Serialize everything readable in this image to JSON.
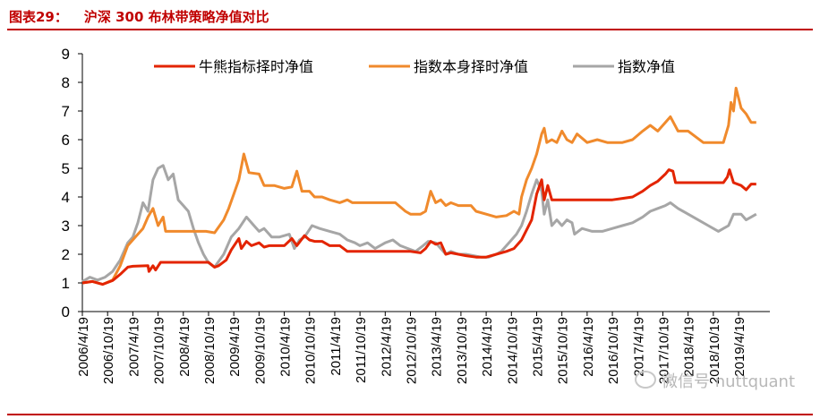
{
  "header": {
    "figure_label": "图表29：",
    "figure_title": "沪深 300 布林带策略净值对比"
  },
  "watermark": {
    "text": "微信号 nuttquant",
    "icon": "wechat-icon"
  },
  "chart_data": {
    "type": "line",
    "title": "沪深 300 布林带策略净值对比",
    "xlabel": "",
    "ylabel": "",
    "ylim": [
      0,
      9
    ],
    "yticks": [
      0,
      1,
      2,
      3,
      4,
      5,
      6,
      7,
      8,
      9
    ],
    "xlim": [
      2006.3,
      2019.92
    ],
    "xtick_positions": [
      2006.3,
      2006.8,
      2007.3,
      2007.8,
      2008.3,
      2008.8,
      2009.3,
      2009.8,
      2010.3,
      2010.8,
      2011.3,
      2011.8,
      2012.3,
      2012.8,
      2013.3,
      2013.8,
      2014.3,
      2014.8,
      2015.3,
      2015.8,
      2016.3,
      2016.8,
      2017.3,
      2017.8,
      2018.3,
      2018.8,
      2019.3
    ],
    "xtick_labels": [
      "2006/4/19",
      "2006/10/19",
      "2007/4/19",
      "2007/10/19",
      "2008/4/19",
      "2008/10/19",
      "2009/4/19",
      "2009/10/19",
      "2010/4/19",
      "2010/10/19",
      "2011/4/19",
      "2011/10/19",
      "2012/4/19",
      "2012/10/19",
      "2013/4/19",
      "2013/10/19",
      "2014/4/19",
      "2014/10/19",
      "2015/4/19",
      "2015/10/19",
      "2016/4/19",
      "2016/10/19",
      "2017/4/19",
      "2017/10/19",
      "2018/4/19",
      "2018/10/19",
      "2019/4/19"
    ],
    "legend": "top",
    "series": [
      {
        "name": "牛熊指标择时净值",
        "color": "#e32400",
        "x": [
          2006.3,
          2006.5,
          2006.7,
          2006.9,
          2007.05,
          2007.2,
          2007.3,
          2007.6,
          2007.62,
          2007.7,
          2007.75,
          2007.85,
          2008.0,
          2008.3,
          2008.6,
          2008.8,
          2008.92,
          2009.0,
          2009.15,
          2009.25,
          2009.4,
          2009.45,
          2009.55,
          2009.65,
          2009.8,
          2009.9,
          2010.0,
          2010.1,
          2010.3,
          2010.45,
          2010.55,
          2010.7,
          2010.8,
          2010.9,
          2011.05,
          2011.2,
          2011.4,
          2011.55,
          2011.7,
          2011.8,
          2011.9,
          2012.2,
          2012.5,
          2012.8,
          2013.0,
          2013.1,
          2013.2,
          2013.3,
          2013.4,
          2013.5,
          2013.6,
          2013.75,
          2013.9,
          2014.1,
          2014.3,
          2014.5,
          2014.7,
          2014.85,
          2015.0,
          2015.2,
          2015.3,
          2015.4,
          2015.45,
          2015.52,
          2015.6,
          2015.8,
          2016.2,
          2016.8,
          2017.0,
          2017.2,
          2017.4,
          2017.55,
          2017.7,
          2017.85,
          2017.92,
          2018.0,
          2018.05,
          2018.2,
          2018.6,
          2019.0,
          2019.08,
          2019.12,
          2019.2,
          2019.35,
          2019.45,
          2019.55,
          2019.65
        ],
        "y": [
          1.0,
          1.05,
          0.95,
          1.08,
          1.3,
          1.55,
          1.58,
          1.6,
          1.4,
          1.6,
          1.45,
          1.72,
          1.72,
          1.72,
          1.72,
          1.72,
          1.55,
          1.6,
          1.8,
          2.15,
          2.55,
          2.2,
          2.45,
          2.3,
          2.4,
          2.25,
          2.3,
          2.3,
          2.3,
          2.55,
          2.3,
          2.65,
          2.5,
          2.45,
          2.45,
          2.3,
          2.3,
          2.1,
          2.1,
          2.1,
          2.1,
          2.1,
          2.1,
          2.1,
          2.05,
          2.2,
          2.45,
          2.35,
          2.4,
          2.0,
          2.05,
          2.0,
          1.95,
          1.9,
          1.9,
          2.0,
          2.1,
          2.2,
          2.5,
          3.2,
          4.1,
          4.6,
          3.9,
          4.4,
          3.9,
          3.9,
          3.9,
          3.9,
          3.95,
          4.0,
          4.2,
          4.4,
          4.55,
          4.8,
          4.95,
          4.9,
          4.5,
          4.5,
          4.5,
          4.5,
          4.7,
          4.95,
          4.5,
          4.4,
          4.25,
          4.45,
          4.45
        ]
      },
      {
        "name": "指数本身择时净值",
        "color": "#f08a2c",
        "x": [
          2006.3,
          2006.5,
          2006.7,
          2006.9,
          2007.05,
          2007.2,
          2007.35,
          2007.5,
          2007.6,
          2007.7,
          2007.8,
          2007.9,
          2007.95,
          2008.1,
          2008.3,
          2008.6,
          2008.75,
          2008.92,
          2009.1,
          2009.2,
          2009.3,
          2009.4,
          2009.5,
          2009.6,
          2009.8,
          2009.9,
          2010.1,
          2010.3,
          2010.45,
          2010.55,
          2010.65,
          2010.8,
          2010.9,
          2011.05,
          2011.2,
          2011.4,
          2011.55,
          2011.65,
          2011.8,
          2012.1,
          2012.5,
          2012.7,
          2012.8,
          2012.9,
          2013.0,
          2013.1,
          2013.2,
          2013.3,
          2013.4,
          2013.5,
          2013.6,
          2013.75,
          2013.9,
          2014.0,
          2014.1,
          2014.3,
          2014.5,
          2014.7,
          2014.85,
          2014.95,
          2015.0,
          2015.1,
          2015.2,
          2015.3,
          2015.4,
          2015.45,
          2015.5,
          2015.6,
          2015.7,
          2015.8,
          2015.9,
          2016.0,
          2016.1,
          2016.3,
          2016.5,
          2016.7,
          2016.8,
          2017.0,
          2017.2,
          2017.4,
          2017.55,
          2017.7,
          2017.85,
          2017.95,
          2018.1,
          2018.3,
          2018.6,
          2018.9,
          2019.0,
          2019.1,
          2019.15,
          2019.2,
          2019.25,
          2019.35,
          2019.45,
          2019.55,
          2019.65
        ],
        "y": [
          1.0,
          1.05,
          0.95,
          1.1,
          1.6,
          2.3,
          2.6,
          2.9,
          3.3,
          3.6,
          3.0,
          3.3,
          2.8,
          2.8,
          2.8,
          2.8,
          2.8,
          2.75,
          3.2,
          3.6,
          4.1,
          4.6,
          5.5,
          4.85,
          4.8,
          4.4,
          4.4,
          4.3,
          4.35,
          4.9,
          4.2,
          4.2,
          4.0,
          4.0,
          3.9,
          3.8,
          3.9,
          3.8,
          3.8,
          3.8,
          3.8,
          3.5,
          3.4,
          3.4,
          3.4,
          3.5,
          4.2,
          3.8,
          3.9,
          3.7,
          3.8,
          3.7,
          3.7,
          3.7,
          3.5,
          3.4,
          3.3,
          3.35,
          3.5,
          3.4,
          4.0,
          4.6,
          5.0,
          5.5,
          6.2,
          6.4,
          5.9,
          6.0,
          5.9,
          6.3,
          6.0,
          5.9,
          6.2,
          5.9,
          6.0,
          5.9,
          5.9,
          5.9,
          6.0,
          6.3,
          6.5,
          6.3,
          6.6,
          6.8,
          6.3,
          6.3,
          5.9,
          5.9,
          5.9,
          6.5,
          7.3,
          7.0,
          7.8,
          7.1,
          6.9,
          6.6,
          6.6
        ]
      },
      {
        "name": "指数净值",
        "color": "#a6a6a6",
        "x": [
          2006.3,
          2006.45,
          2006.6,
          2006.75,
          2006.9,
          2007.05,
          2007.2,
          2007.3,
          2007.4,
          2007.5,
          2007.6,
          2007.7,
          2007.8,
          2007.9,
          2008.0,
          2008.1,
          2008.2,
          2008.3,
          2008.4,
          2008.5,
          2008.6,
          2008.7,
          2008.8,
          2008.92,
          2009.1,
          2009.25,
          2009.4,
          2009.55,
          2009.7,
          2009.8,
          2009.9,
          2010.05,
          2010.2,
          2010.4,
          2010.5,
          2010.6,
          2010.7,
          2010.85,
          2011.0,
          2011.2,
          2011.4,
          2011.55,
          2011.7,
          2011.8,
          2011.95,
          2012.1,
          2012.3,
          2012.45,
          2012.6,
          2012.75,
          2012.9,
          2013.05,
          2013.15,
          2013.3,
          2013.4,
          2013.5,
          2013.6,
          2013.75,
          2013.9,
          2014.05,
          2014.2,
          2014.35,
          2014.5,
          2014.6,
          2014.75,
          2014.9,
          2015.0,
          2015.1,
          2015.2,
          2015.3,
          2015.4,
          2015.45,
          2015.52,
          2015.6,
          2015.7,
          2015.8,
          2015.9,
          2016.0,
          2016.05,
          2016.2,
          2016.4,
          2016.6,
          2016.8,
          2017.0,
          2017.2,
          2017.4,
          2017.55,
          2017.7,
          2017.85,
          2017.95,
          2018.1,
          2018.3,
          2018.5,
          2018.7,
          2018.9,
          2019.0,
          2019.1,
          2019.2,
          2019.35,
          2019.45,
          2019.55,
          2019.65
        ],
        "y": [
          1.05,
          1.2,
          1.1,
          1.2,
          1.4,
          1.8,
          2.4,
          2.6,
          3.1,
          3.8,
          3.5,
          4.6,
          5.0,
          5.1,
          4.6,
          4.8,
          3.9,
          3.7,
          3.5,
          2.9,
          2.4,
          2.0,
          1.7,
          1.55,
          2.0,
          2.6,
          2.9,
          3.3,
          3.0,
          2.8,
          2.9,
          2.6,
          2.6,
          2.7,
          2.2,
          2.5,
          2.6,
          3.0,
          2.9,
          2.8,
          2.7,
          2.5,
          2.4,
          2.3,
          2.4,
          2.2,
          2.4,
          2.5,
          2.3,
          2.2,
          2.1,
          2.3,
          2.45,
          2.4,
          2.2,
          2.0,
          2.1,
          2.0,
          2.0,
          1.95,
          1.9,
          1.9,
          2.0,
          2.1,
          2.4,
          2.7,
          3.0,
          3.5,
          4.1,
          4.6,
          4.2,
          3.4,
          3.9,
          3.0,
          3.2,
          3.0,
          3.2,
          3.1,
          2.7,
          2.9,
          2.8,
          2.8,
          2.9,
          3.0,
          3.1,
          3.3,
          3.5,
          3.6,
          3.7,
          3.8,
          3.6,
          3.4,
          3.2,
          3.0,
          2.8,
          2.9,
          3.0,
          3.4,
          3.4,
          3.2,
          3.3,
          3.4
        ]
      }
    ]
  }
}
